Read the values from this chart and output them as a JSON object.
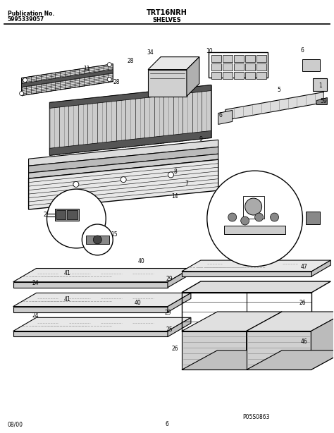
{
  "title": "TRT16NRH",
  "subtitle": "SHELVES",
  "pub_label": "Publication No.",
  "pub_number": "5995339057",
  "footer_left": "08/00",
  "footer_center": "6",
  "footer_right": "P05S0863",
  "bg_color": "#ffffff",
  "line_color": "#000000",
  "text_color": "#000000"
}
